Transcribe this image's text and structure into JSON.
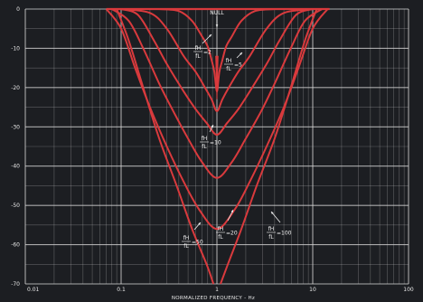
{
  "chart_data": {
    "type": "line",
    "title": "",
    "xlabel": "NORMALIZED FREQUENCY - Hz",
    "ylabel": "",
    "x_scale": "log",
    "xlim": [
      0.01,
      100
    ],
    "ylim": [
      -70,
      0
    ],
    "x_ticks": [
      0.01,
      0.1,
      1,
      10,
      100
    ],
    "x_tick_labels": [
      "0.01",
      "0.1",
      "1",
      "10",
      "100"
    ],
    "y_ticks": [
      0,
      -10,
      -20,
      -30,
      -40,
      -50,
      -60,
      -70
    ],
    "y_tick_labels": [
      "0",
      "-10",
      "-20",
      "-30",
      "-40",
      "-50",
      "-60",
      "-70"
    ],
    "grid": true,
    "legend": "none",
    "line_color": "#d93a3d",
    "background": "#1c1e22",
    "grid_color": "#d8d8d8",
    "series": [
      {
        "ratio": 2,
        "notch_depth": -21,
        "points": [
          [
            0.25,
            0
          ],
          [
            0.4,
            -0.5
          ],
          [
            0.55,
            -3
          ],
          [
            0.7,
            -7
          ],
          [
            0.8,
            -9.5
          ],
          [
            0.88,
            -13
          ],
          [
            0.94,
            -16
          ],
          [
            1,
            -21
          ],
          [
            1.06,
            -16
          ],
          [
            1.14,
            -13
          ],
          [
            1.25,
            -9.5
          ],
          [
            1.43,
            -7
          ],
          [
            1.8,
            -3
          ],
          [
            2.5,
            -0.5
          ],
          [
            4,
            0
          ]
        ]
      },
      {
        "ratio": 5,
        "notch_depth": -26,
        "points": [
          [
            0.1,
            0
          ],
          [
            0.2,
            -1
          ],
          [
            0.3,
            -5
          ],
          [
            0.45,
            -12
          ],
          [
            0.6,
            -16
          ],
          [
            0.75,
            -20
          ],
          [
            0.88,
            -23
          ],
          [
            1,
            -26
          ],
          [
            1.14,
            -23
          ],
          [
            1.33,
            -20
          ],
          [
            1.67,
            -16
          ],
          [
            2.2,
            -12
          ],
          [
            3.3,
            -5
          ],
          [
            5,
            -1
          ],
          [
            10,
            0
          ]
        ]
      },
      {
        "ratio": 10,
        "notch_depth": -32,
        "points": [
          [
            0.1,
            0
          ],
          [
            0.15,
            -1.5
          ],
          [
            0.22,
            -8
          ],
          [
            0.3,
            -14
          ],
          [
            0.45,
            -21
          ],
          [
            0.6,
            -25.5
          ],
          [
            0.78,
            -29
          ],
          [
            1,
            -32
          ],
          [
            1.28,
            -29
          ],
          [
            1.67,
            -25.5
          ],
          [
            2.2,
            -21
          ],
          [
            3.3,
            -14
          ],
          [
            4.5,
            -8
          ],
          [
            6.7,
            -1.5
          ],
          [
            10,
            0
          ]
        ]
      },
      {
        "ratio": 20,
        "notch_depth": -43,
        "points": [
          [
            0.08,
            0
          ],
          [
            0.12,
            -3
          ],
          [
            0.17,
            -10
          ],
          [
            0.25,
            -19
          ],
          [
            0.35,
            -26
          ],
          [
            0.5,
            -33
          ],
          [
            0.7,
            -39
          ],
          [
            1,
            -43
          ],
          [
            1.43,
            -39
          ],
          [
            2,
            -33
          ],
          [
            2.9,
            -26
          ],
          [
            4,
            -19
          ],
          [
            5.9,
            -10
          ],
          [
            8.3,
            -3
          ],
          [
            12.5,
            0
          ]
        ]
      },
      {
        "ratio": 50,
        "notch_depth": -56,
        "points": [
          [
            0.07,
            0
          ],
          [
            0.1,
            -5
          ],
          [
            0.14,
            -15
          ],
          [
            0.2,
            -25
          ],
          [
            0.3,
            -35
          ],
          [
            0.45,
            -44
          ],
          [
            0.65,
            -51
          ],
          [
            1,
            -56
          ],
          [
            1.54,
            -51
          ],
          [
            2.2,
            -44
          ],
          [
            3.3,
            -35
          ],
          [
            5,
            -25
          ],
          [
            7.1,
            -15
          ],
          [
            10,
            -5
          ],
          [
            14.3,
            0
          ]
        ]
      },
      {
        "ratio": 100,
        "notch_depth": -70,
        "points": [
          [
            0.09,
            0
          ],
          [
            0.12,
            -8
          ],
          [
            0.17,
            -20
          ],
          [
            0.25,
            -33
          ],
          [
            0.38,
            -45
          ],
          [
            0.55,
            -56
          ],
          [
            0.78,
            -65
          ],
          [
            0.92,
            -70
          ]
        ]
      },
      {
        "ratio": 100,
        "notch_depth": -70,
        "points": [
          [
            1.09,
            -70
          ],
          [
            1.3,
            -65
          ],
          [
            1.8,
            -56
          ],
          [
            2.6,
            -45
          ],
          [
            4,
            -33
          ],
          [
            5.9,
            -20
          ],
          [
            8.3,
            -8
          ],
          [
            11,
            0
          ]
        ]
      }
    ],
    "annotations": {
      "null": "NULL",
      "r2": "=2",
      "r5": "=5",
      "r10": "=10",
      "r20": "=20",
      "r50": "=50",
      "r100": "=100",
      "fh": "fH",
      "fl": "fL"
    }
  }
}
